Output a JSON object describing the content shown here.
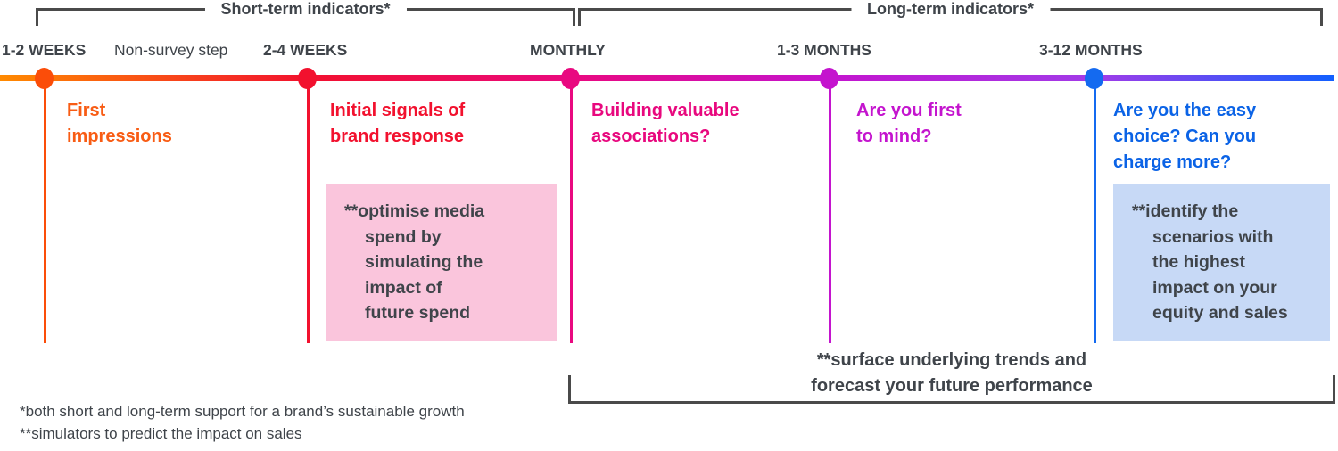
{
  "colors": {
    "orange": "#F85C14",
    "red": "#F2112E",
    "magenta": "#E8087E",
    "purple": "#C414CE",
    "blue": "#0B63E6",
    "dot_orange": "#FB4D09",
    "dot_blue": "#146AF0",
    "pink_box_bg": "#FAC5DC",
    "blue_box_bg": "#C7D9F6",
    "dark_text": "#3F444A",
    "bracket_gray": "#4A4A4A",
    "timeline_gradient": [
      "#FF8A00",
      "#F2112E",
      "#E90980",
      "#C414CE",
      "#A13BE8",
      "#1160FF"
    ]
  },
  "top_brackets": {
    "short_term": "Short-term indicators*",
    "long_term": "Long-term indicators*"
  },
  "timeline": {
    "non_survey_label": "Non-survey step",
    "stages": [
      {
        "label": "1-2 WEEKS",
        "heading": "First\nimpressions"
      },
      {
        "label": "2-4 WEEKS",
        "heading": "Initial signals of\nbrand response"
      },
      {
        "label": "MONTHLY",
        "heading": "Building valuable\nassociations?"
      },
      {
        "label": "1-3 MONTHS",
        "heading": "Are you first\nto mind?"
      },
      {
        "label": "3-12 MONTHS",
        "heading": "Are you the easy\nchoice? Can you\ncharge more?"
      }
    ]
  },
  "callouts": {
    "pink_box": "**optimise media\nspend by\nsimulating the\nimpact of\nfuture spend",
    "blue_box": "**identify the\nscenarios with\nthe highest\nimpact on your\nequity and sales"
  },
  "bottom_bracket": {
    "label": "**surface underlying trends and\nforecast your future performance"
  },
  "footnotes": [
    "*both short and long-term support for a brand’s sustainable growth",
    "**simulators to predict the impact on sales"
  ]
}
